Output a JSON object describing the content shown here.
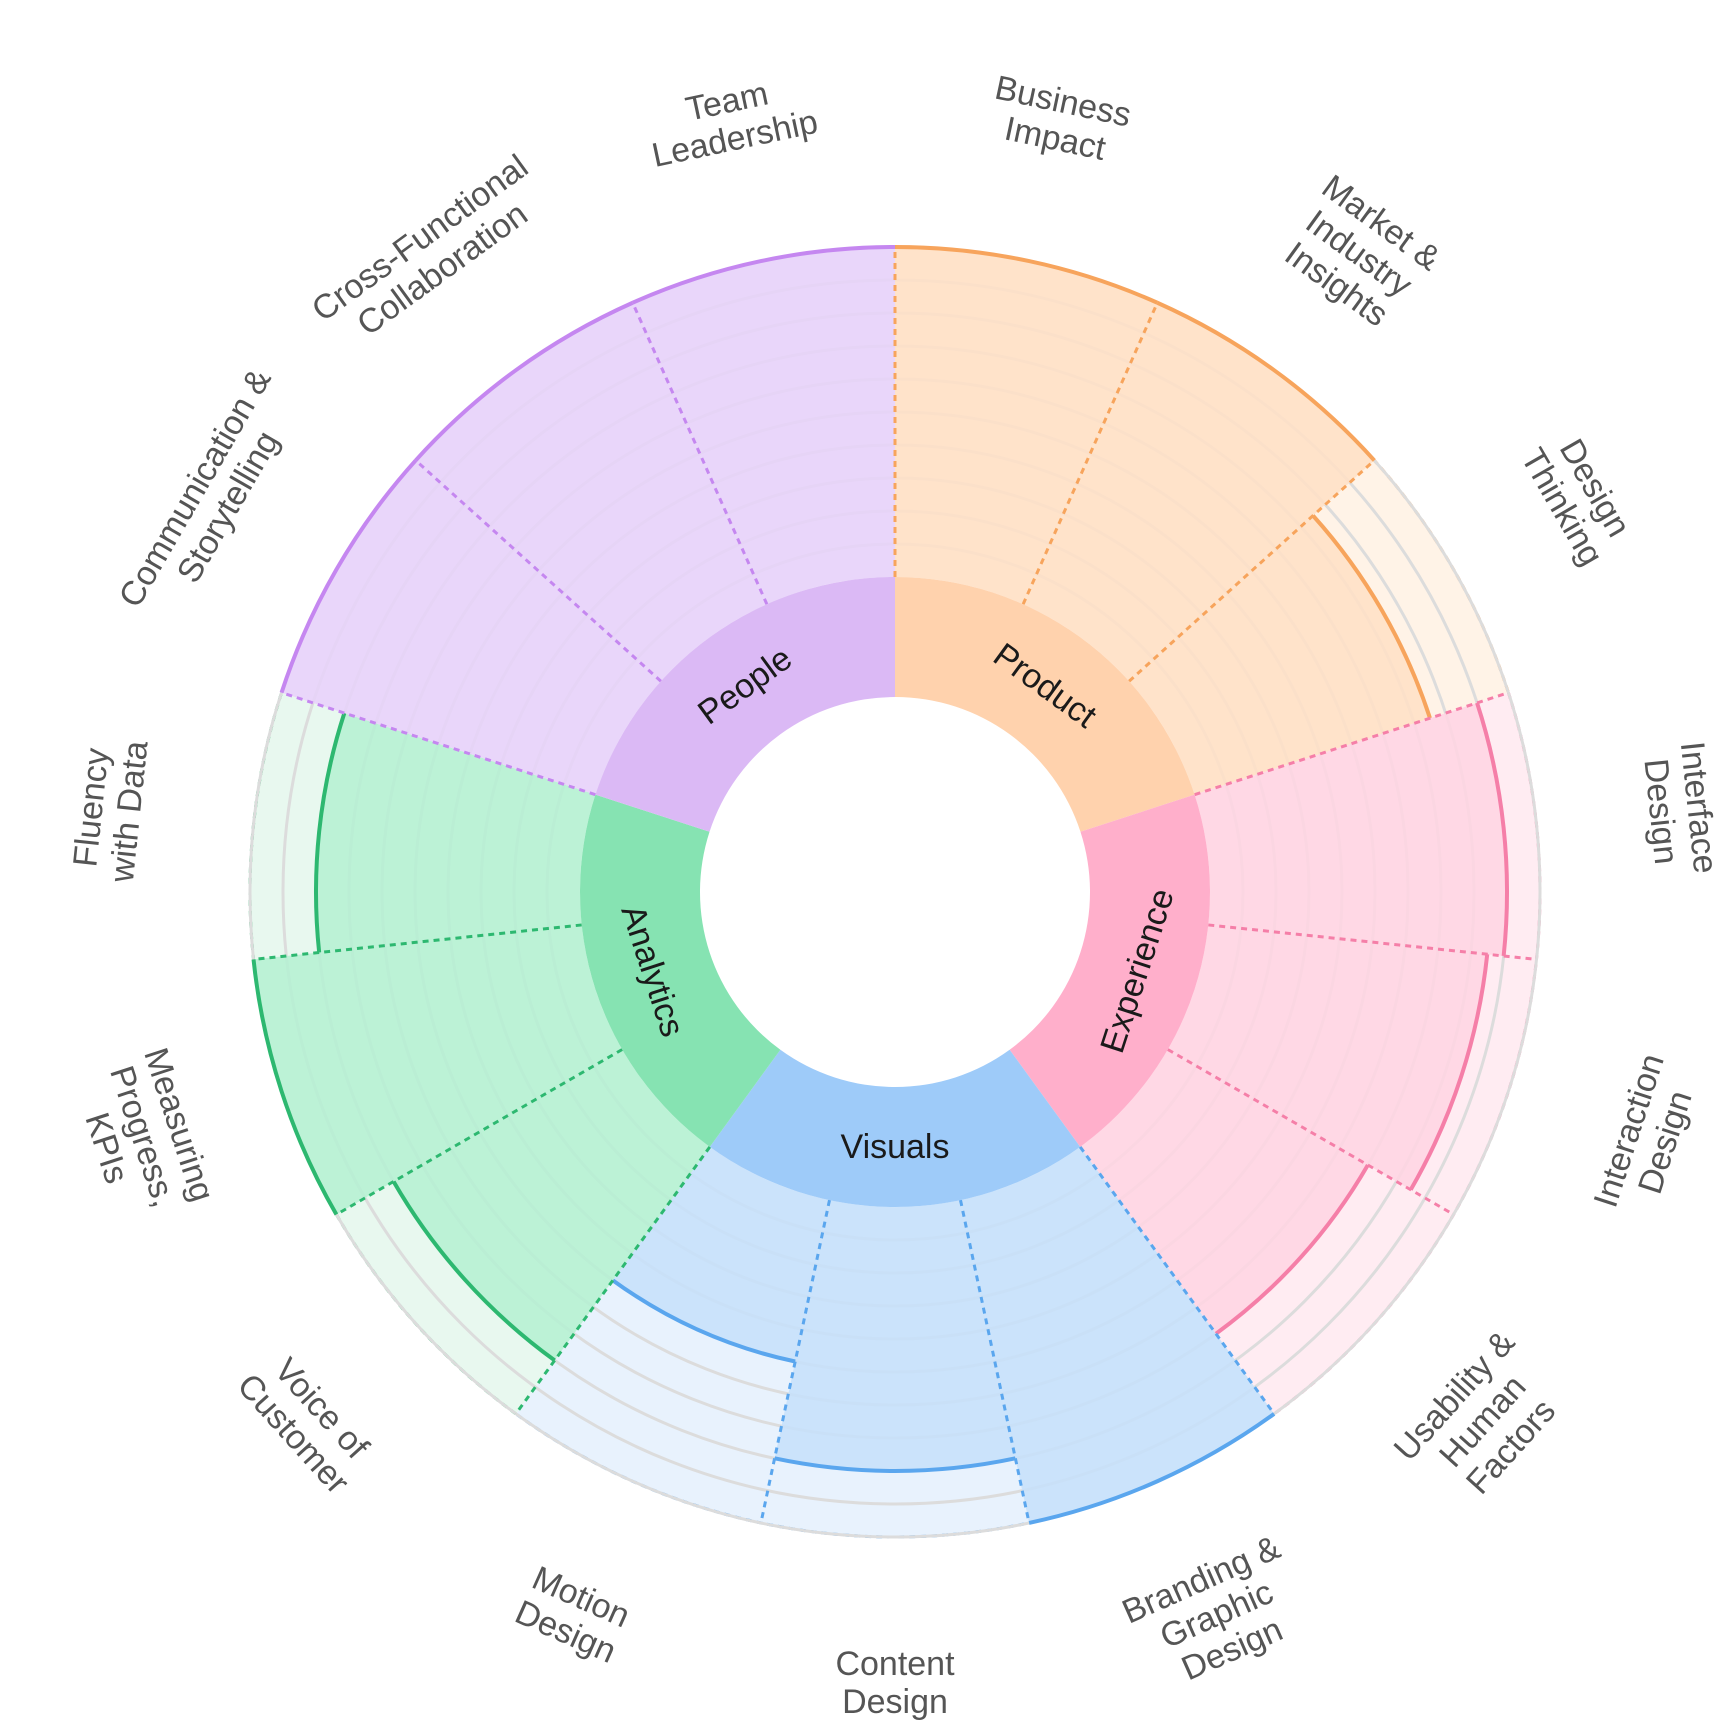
{
  "chart_data": {
    "type": "radial-bar",
    "max_level": 10,
    "grid_levels": [
      1,
      2,
      3,
      4,
      5,
      6,
      7,
      8,
      9,
      10
    ],
    "grid_color": "#dcdcdc",
    "categories": [
      {
        "name": "Product",
        "color": "#f7a45c",
        "inner_fill": "#ffd2ad",
        "fill": "#ffe0c6",
        "track_fill": "#fff3e7",
        "skills": [
          {
            "name": "Business Impact",
            "lines": [
              "Business",
              "Impact"
            ],
            "value": 10
          },
          {
            "name": "Market & Industry Insights",
            "lines": [
              "Market &",
              "Industry",
              "Insights"
            ],
            "value": 10
          },
          {
            "name": "Design Thinking",
            "lines": [
              "Design",
              "Thinking"
            ],
            "value": 7.5
          }
        ]
      },
      {
        "name": "Experience",
        "color": "#f57fa8",
        "inner_fill": "#ffafcb",
        "fill": "#ffd5e3",
        "track_fill": "#ffecf2",
        "skills": [
          {
            "name": "Interface Design",
            "lines": [
              "Interface",
              "Design"
            ],
            "value": 9
          },
          {
            "name": "Interaction Design",
            "lines": [
              "Interaction",
              "Design"
            ],
            "value": 8.5
          },
          {
            "name": "Usability & Human Factors",
            "lines": [
              "Usability &",
              "Human",
              "Factors"
            ],
            "value": 7
          }
        ]
      },
      {
        "name": "Visuals",
        "color": "#5aa6ee",
        "inner_fill": "#9ecbf9",
        "fill": "#c6e0fb",
        "track_fill": "#e8f2fd",
        "skills": [
          {
            "name": "Branding & Graphic Design",
            "lines": [
              "Branding &",
              "Graphic",
              "Design"
            ],
            "value": 10
          },
          {
            "name": "Content Design",
            "lines": [
              "Content",
              "Design"
            ],
            "value": 8
          },
          {
            "name": "Motion Design",
            "lines": [
              "Motion",
              "Design"
            ],
            "value": 5
          }
        ]
      },
      {
        "name": "Analytics",
        "color": "#2db870",
        "inner_fill": "#86e3b2",
        "fill": "#b5f0d3",
        "track_fill": "#e8f8ef",
        "skills": [
          {
            "name": "Voice of Customer",
            "lines": [
              "Voice of",
              "Customer"
            ],
            "value": 8
          },
          {
            "name": "Measuring Progress, KPIs",
            "lines": [
              "Measuring",
              "Progress,",
              "KPIs"
            ],
            "value": 10
          },
          {
            "name": "Fluency with Data",
            "lines": [
              "Fluency",
              "with Data"
            ],
            "value": 8
          }
        ]
      },
      {
        "name": "People",
        "color": "#c587f0",
        "inner_fill": "#dbb9f5",
        "fill": "#e7d3f9",
        "track_fill": "#f4eafc",
        "skills": [
          {
            "name": "Communication & Storytelling",
            "lines": [
              "Communication &",
              "Storytelling"
            ],
            "value": 10
          },
          {
            "name": "Cross-Functional Collaboration",
            "lines": [
              "Cross-Functional",
              "Collaboration"
            ],
            "value": 10
          },
          {
            "name": "Team Leadership",
            "lines": [
              "Team",
              "Leadership"
            ],
            "value": 10
          }
        ]
      }
    ]
  }
}
